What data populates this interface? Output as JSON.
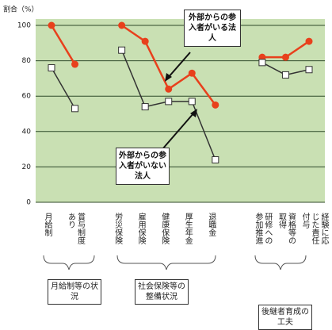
{
  "chart_data": {
    "type": "line",
    "y_label": "割合（%）",
    "categories": [
      "月給制",
      "賞与制度あり",
      null,
      "労災保険",
      "雇用保険",
      "健康保険",
      "厚生年金",
      "退職金",
      null,
      "研修への参加推進",
      "資格等の取得",
      "経験に応じた責任付与"
    ],
    "series": [
      {
        "name": "外部からの参入者がいる法人",
        "color": "#e8401c",
        "line_color": "#e8401c",
        "marker": "circle",
        "values": [
          100,
          78,
          null,
          100,
          91,
          64,
          73,
          55,
          null,
          82,
          82,
          91
        ]
      },
      {
        "name": "外部からの参入者がいない法人",
        "color": "#ffffff",
        "line_color": "#333333",
        "marker": "square",
        "values": [
          76,
          53,
          null,
          86,
          54,
          57,
          57,
          24,
          null,
          79,
          72,
          75
        ]
      }
    ],
    "annotations": [
      "月給制等の状況",
      "社会保険等の整備状況",
      "後継者育成の工夫"
    ],
    "ylim": [
      0,
      100
    ],
    "yticks": [
      0,
      20,
      40,
      60,
      80,
      100
    ],
    "grid": true,
    "plot_background": "#c9e0b3"
  }
}
